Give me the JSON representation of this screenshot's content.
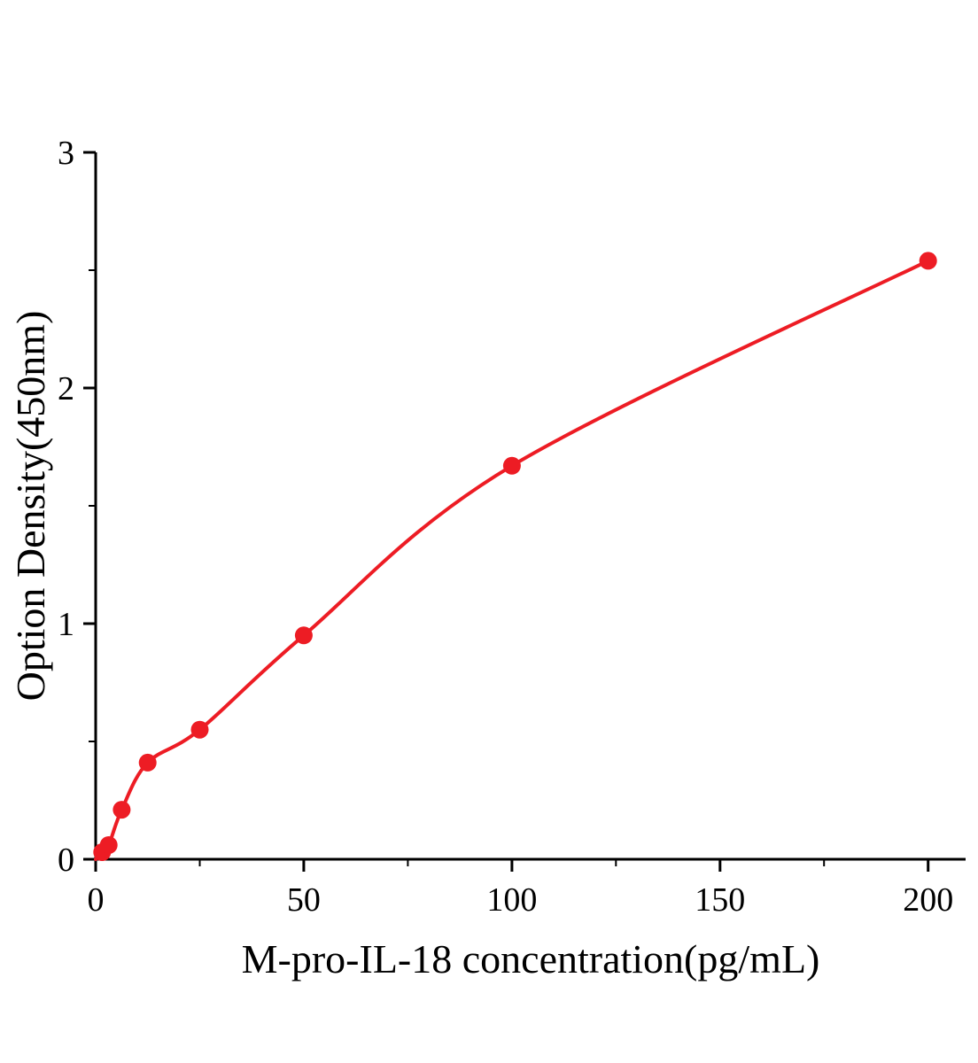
{
  "figure": {
    "background": "#ffffff"
  },
  "chart_data": {
    "type": "scatter",
    "title": "",
    "xlabel": "M-pro-IL-18 concentration(pg/mL)",
    "ylabel": "Option Density(450nm)",
    "x": [
      1.56,
      3.13,
      6.25,
      12.5,
      25,
      50,
      100,
      200
    ],
    "y": [
      0.03,
      0.06,
      0.21,
      0.41,
      0.55,
      0.95,
      1.67,
      2.54
    ],
    "curve": "smooth fitted curve through the data points starting at the origin",
    "xlim": [
      0,
      209
    ],
    "ylim": [
      0,
      3
    ],
    "x_ticks": [
      0,
      50,
      100,
      150,
      200
    ],
    "y_ticks": [
      0,
      1,
      2,
      3
    ],
    "x_minor_ticks": [
      25,
      75,
      125,
      175
    ],
    "y_minor_ticks": [
      0.5,
      1.5,
      2.5
    ],
    "grid": false,
    "legend": null,
    "point_color": "#ed1c24",
    "line_color": "#ed1c24",
    "axis_color": "#000000"
  }
}
